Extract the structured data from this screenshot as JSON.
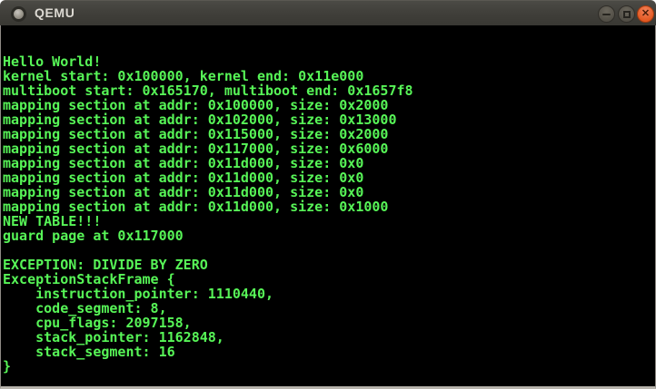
{
  "window": {
    "title": "QEMU",
    "icons": {
      "titlebar_icon": "window-dot-icon",
      "minimize": "minus-bar",
      "maximize": "square-outline",
      "close": "x-cross"
    },
    "controls": [
      {
        "name": "minimize"
      },
      {
        "name": "maximize"
      },
      {
        "name": "close",
        "glyph": "✕"
      }
    ],
    "colors": {
      "titlebar_bg": "#3c3b37",
      "titlebar_text": "#dcd9d2",
      "close_button_orange": "#e3571f",
      "button_gray": "#504d45",
      "console_bg": "#000000",
      "console_text_green": "#57f557",
      "window_border": "#b7b3ac"
    }
  },
  "console": {
    "lines": [
      "",
      "",
      "Hello World!",
      "kernel start: 0x100000, kernel end: 0x11e000",
      "multiboot start: 0x165170, multiboot end: 0x1657f8",
      "mapping section at addr: 0x100000, size: 0x2000",
      "mapping section at addr: 0x102000, size: 0x13000",
      "mapping section at addr: 0x115000, size: 0x2000",
      "mapping section at addr: 0x117000, size: 0x6000",
      "mapping section at addr: 0x11d000, size: 0x0",
      "mapping section at addr: 0x11d000, size: 0x0",
      "mapping section at addr: 0x11d000, size: 0x0",
      "mapping section at addr: 0x11d000, size: 0x1000",
      "NEW TABLE!!!",
      "guard page at 0x117000",
      "",
      "EXCEPTION: DIVIDE BY ZERO",
      "ExceptionStackFrame {",
      "    instruction_pointer: 1110440,",
      "    code_segment: 8,",
      "    cpu_flags: 2097158,",
      "    stack_pointer: 1162848,",
      "    stack_segment: 16",
      "}"
    ]
  }
}
